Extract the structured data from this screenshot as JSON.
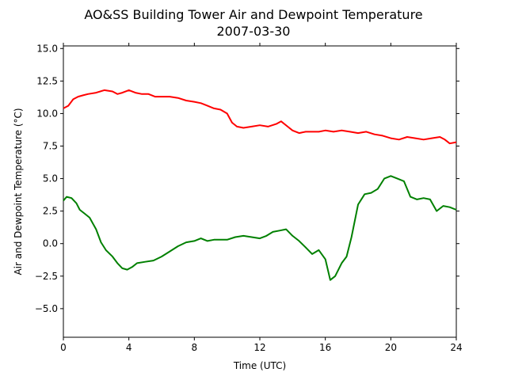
{
  "chart_data": {
    "type": "line",
    "title": "AO&SS Building Tower Air and Dewpoint Temperature",
    "subtitle": "2007-03-30",
    "xlabel": "Time (UTC)",
    "ylabel": "Air and Dewpoint Temperature (°C)",
    "xlim": [
      0,
      24
    ],
    "ylim": [
      -7.2,
      15.2
    ],
    "xticks": [
      0,
      4,
      8,
      12,
      16,
      20,
      24
    ],
    "xtick_labels": [
      "0",
      "4",
      "8",
      "12",
      "16",
      "20",
      "24"
    ],
    "yticks": [
      -5.0,
      -2.5,
      0.0,
      2.5,
      5.0,
      7.5,
      10.0,
      12.5,
      15.0
    ],
    "ytick_labels": [
      "−5.0",
      "−2.5",
      "0.0",
      "2.5",
      "5.0",
      "7.5",
      "10.0",
      "12.5",
      "15.0"
    ],
    "grid": false,
    "legend": "none",
    "series": [
      {
        "color": "#ff0000",
        "x": [
          0,
          0.3,
          0.6,
          0.9,
          1.2,
          1.5,
          2.0,
          2.5,
          3.0,
          3.3,
          3.6,
          4.0,
          4.4,
          4.8,
          5.2,
          5.6,
          6.0,
          6.5,
          7.0,
          7.5,
          8.0,
          8.4,
          8.8,
          9.2,
          9.6,
          10.0,
          10.3,
          10.6,
          11.0,
          11.5,
          12.0,
          12.5,
          13.0,
          13.3,
          13.7,
          14.0,
          14.4,
          14.8,
          15.2,
          15.6,
          16.0,
          16.5,
          17.0,
          17.5,
          18.0,
          18.5,
          19.0,
          19.5,
          20.0,
          20.5,
          21.0,
          21.5,
          22.0,
          22.5,
          23.0,
          23.3,
          23.6,
          24.0
        ],
        "y": [
          10.4,
          10.6,
          11.1,
          11.3,
          11.4,
          11.5,
          11.6,
          11.8,
          11.7,
          11.5,
          11.6,
          11.8,
          11.6,
          11.5,
          11.5,
          11.3,
          11.3,
          11.3,
          11.2,
          11.0,
          10.9,
          10.8,
          10.6,
          10.4,
          10.3,
          10.0,
          9.3,
          9.0,
          8.9,
          9.0,
          9.1,
          9.0,
          9.2,
          9.4,
          9.0,
          8.7,
          8.5,
          8.6,
          8.6,
          8.6,
          8.7,
          8.6,
          8.7,
          8.6,
          8.5,
          8.6,
          8.4,
          8.3,
          8.1,
          8.0,
          8.2,
          8.1,
          8.0,
          8.1,
          8.2,
          8.0,
          7.7,
          7.8
        ]
      },
      {
        "color": "#008000",
        "x": [
          0,
          0.2,
          0.5,
          0.8,
          1.0,
          1.3,
          1.6,
          2.0,
          2.3,
          2.6,
          3.0,
          3.3,
          3.6,
          3.9,
          4.2,
          4.5,
          5.0,
          5.5,
          6.0,
          6.5,
          7.0,
          7.5,
          8.0,
          8.4,
          8.8,
          9.2,
          9.6,
          10.0,
          10.5,
          11.0,
          11.5,
          12.0,
          12.4,
          12.8,
          13.2,
          13.6,
          14.0,
          14.4,
          14.8,
          15.2,
          15.6,
          16.0,
          16.3,
          16.6,
          17.0,
          17.3,
          17.6,
          18.0,
          18.4,
          18.8,
          19.2,
          19.6,
          20.0,
          20.4,
          20.8,
          21.2,
          21.6,
          22.0,
          22.4,
          22.8,
          23.2,
          23.6,
          24.0
        ],
        "y": [
          3.3,
          3.6,
          3.5,
          3.1,
          2.6,
          2.3,
          2.0,
          1.1,
          0.1,
          -0.5,
          -1.0,
          -1.5,
          -1.9,
          -2.0,
          -1.8,
          -1.5,
          -1.4,
          -1.3,
          -1.0,
          -0.6,
          -0.2,
          0.1,
          0.2,
          0.4,
          0.2,
          0.3,
          0.3,
          0.3,
          0.5,
          0.6,
          0.5,
          0.4,
          0.6,
          0.9,
          1.0,
          1.1,
          0.6,
          0.2,
          -0.3,
          -0.8,
          -0.5,
          -1.2,
          -2.8,
          -2.5,
          -1.5,
          -1.0,
          0.5,
          3.0,
          3.8,
          3.9,
          4.2,
          5.0,
          5.2,
          5.0,
          4.8,
          3.6,
          3.4,
          3.5,
          3.4,
          2.5,
          2.9,
          2.8,
          2.6
        ]
      }
    ]
  }
}
